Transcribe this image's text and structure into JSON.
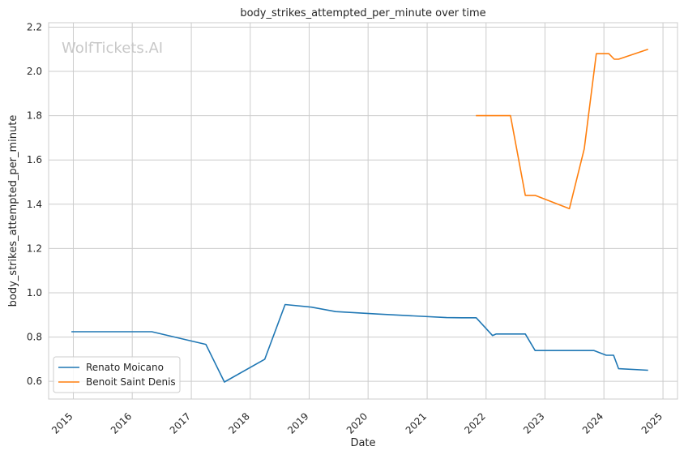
{
  "chart_data": {
    "type": "line",
    "title": "body_strikes_attempted_per_minute over time",
    "xlabel": "Date",
    "ylabel": "body_strikes_attempted_per_minute",
    "watermark": "WolfTickets.AI",
    "xlim": [
      "2014-08-01",
      "2025-04-01"
    ],
    "ylim": [
      0.52,
      2.22
    ],
    "x_ticks": [
      "2015",
      "2016",
      "2017",
      "2018",
      "2019",
      "2020",
      "2021",
      "2022",
      "2023",
      "2024",
      "2025"
    ],
    "y_ticks": [
      "0.6",
      "0.8",
      "1.0",
      "1.2",
      "1.4",
      "1.6",
      "1.8",
      "2.0",
      "2.2"
    ],
    "grid": true,
    "legend": "lower-left",
    "series": [
      {
        "name": "Renato Moicano",
        "color": "#1f77b4",
        "x": [
          "2014-12-20",
          "2016-05-01",
          "2017-04-01",
          "2017-07-25",
          "2018-04-01",
          "2018-08-05",
          "2019-01-15",
          "2019-06-15",
          "2020-03-01",
          "2021-05-01",
          "2021-08-01",
          "2021-11-01",
          "2022-02-10",
          "2022-03-05",
          "2022-09-01",
          "2022-11-01",
          "2023-02-01",
          "2023-06-01",
          "2023-11-01",
          "2024-01-15",
          "2024-03-01",
          "2024-04-01",
          "2024-10-01"
        ],
        "y": [
          0.824,
          0.824,
          0.767,
          0.597,
          0.7,
          0.947,
          0.935,
          0.915,
          0.904,
          0.888,
          0.887,
          0.887,
          0.807,
          0.814,
          0.814,
          0.739,
          0.739,
          0.739,
          0.739,
          0.718,
          0.718,
          0.657,
          0.65
        ]
      },
      {
        "name": "Benoit Saint Denis",
        "color": "#ff7f0e",
        "x": [
          "2021-10-30",
          "2022-06-01",
          "2022-09-01",
          "2022-11-01",
          "2023-06-01",
          "2023-09-01",
          "2023-11-15",
          "2024-02-01",
          "2024-03-05",
          "2024-04-01",
          "2024-10-01"
        ],
        "y": [
          1.8,
          1.8,
          1.44,
          1.44,
          1.38,
          1.65,
          2.08,
          2.08,
          2.055,
          2.055,
          2.1
        ]
      }
    ]
  }
}
